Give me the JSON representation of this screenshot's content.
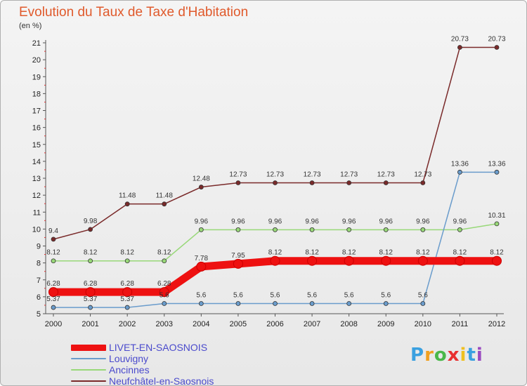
{
  "title": "Evolution du Taux de Taxe d'Habitation",
  "unit": "(en %)",
  "logo": [
    "P",
    "r",
    "o",
    "x",
    "i",
    "t",
    "i"
  ],
  "colors": {
    "series": [
      "#ee1111",
      "#6a9ccc",
      "#98d878",
      "#7a2a2a"
    ],
    "logo": [
      "#3aa0e0",
      "#f0a020",
      "#4ab84a",
      "#e83030",
      "#f0c020",
      "#3aa0e0",
      "#9a4ac0"
    ]
  },
  "chart_data": {
    "type": "line",
    "categories": [
      "2000",
      "2001",
      "2002",
      "2003",
      "2004",
      "2005",
      "2006",
      "2007",
      "2008",
      "2009",
      "2010",
      "2011",
      "2012"
    ],
    "ylim": [
      5,
      21
    ],
    "yticks": [
      "5",
      "6",
      "7",
      "8",
      "9",
      "10",
      "11",
      "12",
      "13",
      "14",
      "15",
      "16",
      "17",
      "18",
      "19",
      "20",
      "21"
    ],
    "grid": false,
    "legend_position": "bottom-left",
    "series": [
      {
        "name": "LIVET-EN-SAOSNOIS",
        "values": [
          6.28,
          6.28,
          6.28,
          6.28,
          7.78,
          7.95,
          8.12,
          8.12,
          8.12,
          8.12,
          8.12,
          8.12,
          8.12
        ],
        "labels": [
          "6.28",
          "6.28",
          "6.28",
          "6.28",
          "7.78",
          "7.95",
          "8.12",
          "8.12",
          "8.12",
          "8.12",
          "8.12",
          "8.12",
          "8.12"
        ]
      },
      {
        "name": "Louvigny",
        "values": [
          5.37,
          5.37,
          5.37,
          5.6,
          5.6,
          5.6,
          5.6,
          5.6,
          5.6,
          5.6,
          5.6,
          13.36,
          13.36
        ],
        "labels": [
          "5.37",
          "5.37",
          "5.37",
          "5.6",
          "5.6",
          "5.6",
          "5.6",
          "5.6",
          "5.6",
          "5.6",
          "5.6",
          "13.36",
          "13.36"
        ]
      },
      {
        "name": "Ancinnes",
        "values": [
          8.12,
          8.12,
          8.12,
          8.12,
          9.96,
          9.96,
          9.96,
          9.96,
          9.96,
          9.96,
          9.96,
          9.96,
          10.31
        ],
        "labels": [
          "8.12",
          "8.12",
          "8.12",
          "8.12",
          "9.96",
          "9.96",
          "9.96",
          "9.96",
          "9.96",
          "9.96",
          "9.96",
          "9.96",
          "10.31"
        ]
      },
      {
        "name": "Neufchâtel-en-Saosnois",
        "values": [
          9.4,
          9.98,
          11.48,
          11.48,
          12.48,
          12.73,
          12.73,
          12.73,
          12.73,
          12.73,
          12.73,
          20.73,
          20.73
        ],
        "labels": [
          "9.4",
          "9.98",
          "11.48",
          "11.48",
          "12.48",
          "12.73",
          "12.73",
          "12.73",
          "12.73",
          "12.73",
          "12.73",
          "20.73",
          "20.73"
        ]
      }
    ]
  }
}
